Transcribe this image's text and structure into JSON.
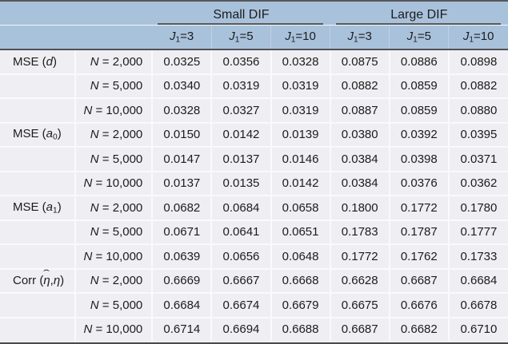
{
  "table_title": "Simulation results table: MSE and correlation by DIF size, sample size N, and number of anchor items J1",
  "colors": {
    "header_bg": "#a9c2db",
    "body_bg": "#efeef2",
    "dark_rule": "#515153",
    "light_separator": "#fafafc"
  },
  "header": {
    "spanners": [
      {
        "label": "Small DIF"
      },
      {
        "label": "Large DIF"
      }
    ],
    "columns": [
      {
        "parts": [
          {
            "t": "J",
            "i": true
          },
          {
            "t": "1",
            "sub": true
          },
          {
            "t": "=3"
          }
        ]
      },
      {
        "parts": [
          {
            "t": "J",
            "i": true
          },
          {
            "t": "1",
            "sub": true
          },
          {
            "t": "=5"
          }
        ]
      },
      {
        "parts": [
          {
            "t": "J",
            "i": true
          },
          {
            "t": "1",
            "sub": true
          },
          {
            "t": "=10"
          }
        ]
      },
      {
        "parts": [
          {
            "t": "J",
            "i": true
          },
          {
            "t": "1",
            "sub": true
          },
          {
            "t": "=3"
          }
        ]
      },
      {
        "parts": [
          {
            "t": "J",
            "i": true
          },
          {
            "t": "1",
            "sub": true
          },
          {
            "t": "=5"
          }
        ]
      },
      {
        "parts": [
          {
            "t": "J",
            "i": true
          },
          {
            "t": "1",
            "sub": true
          },
          {
            "t": "=10"
          }
        ]
      }
    ]
  },
  "chart_data": {
    "type": "table",
    "column_groups": [
      "Small DIF",
      "Large DIF"
    ],
    "columns": [
      "J1=3",
      "J1=5",
      "J1=10",
      "J1=3",
      "J1=5",
      "J1=10"
    ],
    "groups": [
      {
        "label_parts": [
          {
            "t": "MSE ("
          },
          {
            "t": "d",
            "i": true
          },
          {
            "t": ")"
          }
        ],
        "rows": [
          {
            "n_parts": [
              {
                "t": "N",
                "i": true
              },
              {
                "t": " = 2,000"
              }
            ],
            "values": [
              "0.0325",
              "0.0356",
              "0.0328",
              "0.0875",
              "0.0886",
              "0.0898"
            ]
          },
          {
            "n_parts": [
              {
                "t": "N",
                "i": true
              },
              {
                "t": " = 5,000"
              }
            ],
            "values": [
              "0.0340",
              "0.0319",
              "0.0319",
              "0.0882",
              "0.0859",
              "0.0882"
            ]
          },
          {
            "n_parts": [
              {
                "t": "N",
                "i": true
              },
              {
                "t": " = 10,000"
              }
            ],
            "values": [
              "0.0328",
              "0.0327",
              "0.0319",
              "0.0887",
              "0.0859",
              "0.0880"
            ]
          }
        ]
      },
      {
        "label_parts": [
          {
            "t": "MSE ("
          },
          {
            "t": "a",
            "i": true
          },
          {
            "t": "0",
            "sub": true
          },
          {
            "t": ")"
          }
        ],
        "rows": [
          {
            "n_parts": [
              {
                "t": "N",
                "i": true
              },
              {
                "t": " = 2,000"
              }
            ],
            "values": [
              "0.0150",
              "0.0142",
              "0.0139",
              "0.0380",
              "0.0392",
              "0.0395"
            ]
          },
          {
            "n_parts": [
              {
                "t": "N",
                "i": true
              },
              {
                "t": " = 5,000"
              }
            ],
            "values": [
              "0.0147",
              "0.0137",
              "0.0146",
              "0.0384",
              "0.0398",
              "0.0371"
            ]
          },
          {
            "n_parts": [
              {
                "t": "N",
                "i": true
              },
              {
                "t": " = 10,000"
              }
            ],
            "values": [
              "0.0137",
              "0.0135",
              "0.0142",
              "0.0384",
              "0.0376",
              "0.0362"
            ]
          }
        ]
      },
      {
        "label_parts": [
          {
            "t": "MSE ("
          },
          {
            "t": "a",
            "i": true
          },
          {
            "t": "1",
            "sub": true
          },
          {
            "t": ")"
          }
        ],
        "rows": [
          {
            "n_parts": [
              {
                "t": "N",
                "i": true
              },
              {
                "t": " = 2,000"
              }
            ],
            "values": [
              "0.0682",
              "0.0684",
              "0.0658",
              "0.1800",
              "0.1772",
              "0.1780"
            ]
          },
          {
            "n_parts": [
              {
                "t": "N",
                "i": true
              },
              {
                "t": " = 5,000"
              }
            ],
            "values": [
              "0.0671",
              "0.0641",
              "0.0651",
              "0.1783",
              "0.1787",
              "0.1777"
            ]
          },
          {
            "n_parts": [
              {
                "t": "N",
                "i": true
              },
              {
                "t": " = 10,000"
              }
            ],
            "values": [
              "0.0639",
              "0.0656",
              "0.0648",
              "0.1772",
              "0.1762",
              "0.1733"
            ]
          }
        ]
      },
      {
        "label_parts": [
          {
            "t": "Corr ("
          },
          {
            "t": "η",
            "i": true,
            "hat": true
          },
          {
            "t": ","
          },
          {
            "t": "η",
            "i": true
          },
          {
            "t": ")"
          }
        ],
        "rows": [
          {
            "n_parts": [
              {
                "t": "N",
                "i": true
              },
              {
                "t": " = 2,000"
              }
            ],
            "values": [
              "0.6669",
              "0.6667",
              "0.6668",
              "0.6628",
              "0.6687",
              "0.6684"
            ]
          },
          {
            "n_parts": [
              {
                "t": "N",
                "i": true
              },
              {
                "t": " = 5,000"
              }
            ],
            "values": [
              "0.6684",
              "0.6674",
              "0.6679",
              "0.6675",
              "0.6676",
              "0.6678"
            ]
          },
          {
            "n_parts": [
              {
                "t": "N",
                "i": true
              },
              {
                "t": " = 10,000"
              }
            ],
            "values": [
              "0.6714",
              "0.6694",
              "0.6688",
              "0.6687",
              "0.6682",
              "0.6710"
            ]
          }
        ]
      }
    ]
  }
}
